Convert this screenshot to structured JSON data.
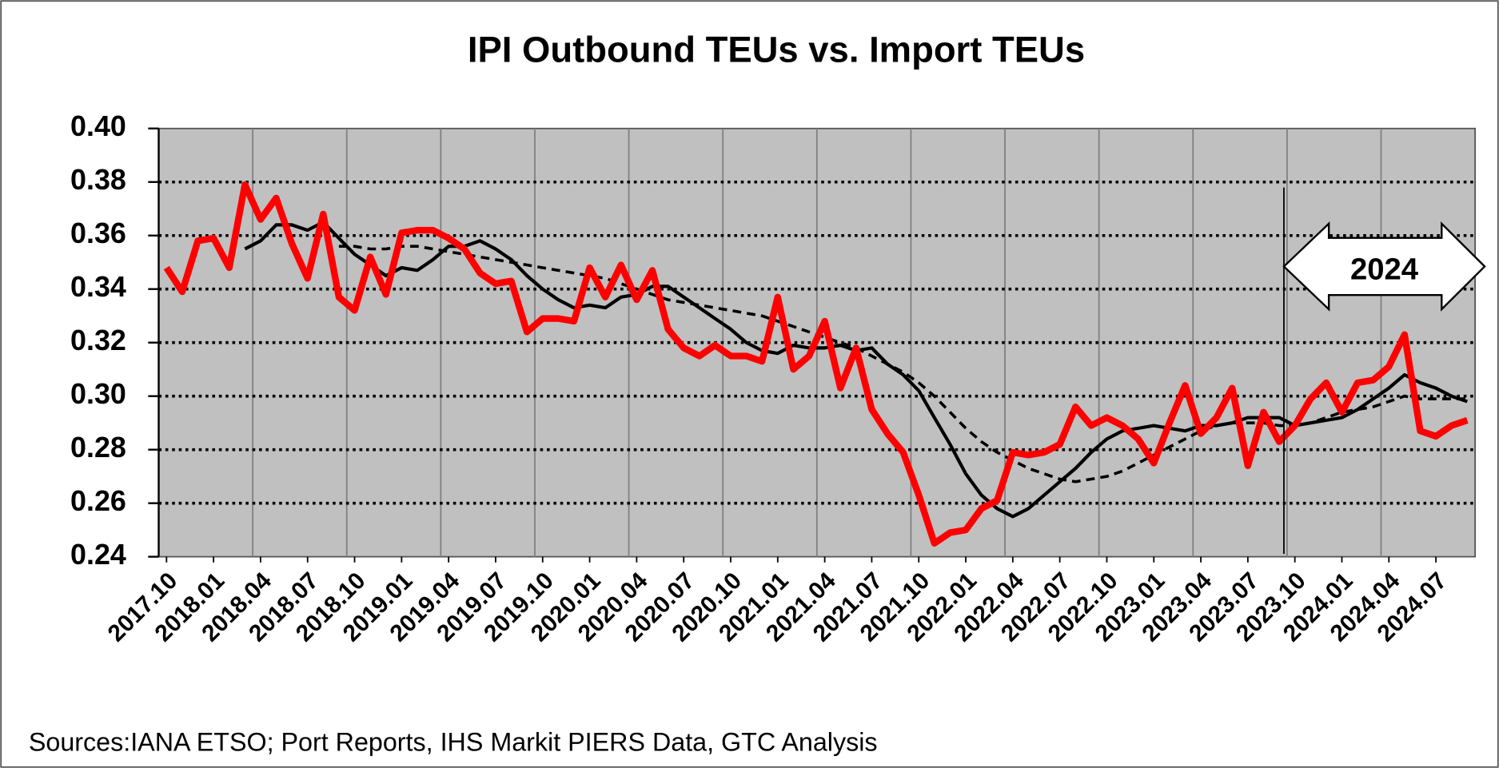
{
  "chart_data": {
    "type": "line",
    "title": "IPI Outbound TEUs vs. Import TEUs",
    "source": "Sources:IANA  ETSO; Port Reports, IHS Markit PIERS  Data, GTC Analysis",
    "annotation": "2024",
    "categories": [
      "2017.10",
      null,
      null,
      "2018.01",
      null,
      null,
      "2018.04",
      null,
      null,
      "2018.07",
      null,
      null,
      "2018.10",
      null,
      null,
      "2019.01",
      null,
      null,
      "2019.04",
      null,
      null,
      "2019.07",
      null,
      null,
      "2019.10",
      null,
      null,
      "2020.01",
      null,
      null,
      "2020.04",
      null,
      null,
      "2020.07",
      null,
      null,
      "2020.10",
      null,
      null,
      "2021.01",
      null,
      null,
      "2021.04",
      null,
      null,
      "2021.07",
      null,
      null,
      "2021.10",
      null,
      null,
      "2022.01",
      null,
      null,
      "2022.04",
      null,
      null,
      "2022.07",
      null,
      null,
      "2022.10",
      null,
      null,
      "2023.01",
      null,
      null,
      "2023.04",
      null,
      null,
      "2023.07",
      null,
      null,
      "2023.10",
      null,
      null,
      "2024.01",
      null,
      null,
      "2024.04",
      null,
      null,
      "2024.07",
      null,
      null
    ],
    "series": [
      {
        "color": "#ff0000",
        "dashed": false,
        "width": 7,
        "values": [
          0.348,
          0.339,
          0.358,
          0.359,
          0.348,
          0.379,
          0.366,
          0.374,
          0.357,
          0.344,
          0.368,
          0.337,
          0.332,
          0.352,
          0.338,
          0.361,
          0.362,
          0.362,
          0.359,
          0.355,
          0.346,
          0.342,
          0.343,
          0.324,
          0.329,
          0.329,
          0.328,
          0.348,
          0.337,
          0.349,
          0.336,
          0.347,
          0.325,
          0.318,
          0.315,
          0.319,
          0.315,
          0.315,
          0.313,
          0.337,
          0.31,
          0.315,
          0.328,
          0.303,
          0.318,
          0.295,
          0.286,
          0.279,
          0.263,
          0.245,
          0.249,
          0.25,
          0.258,
          0.261,
          0.279,
          0.278,
          0.279,
          0.282,
          0.296,
          0.289,
          0.292,
          0.289,
          0.284,
          0.275,
          0.29,
          0.304,
          0.286,
          0.292,
          0.303,
          0.274,
          0.294,
          0.283,
          0.289,
          0.299,
          0.305,
          0.294,
          0.305,
          0.306,
          0.311,
          0.323,
          0.287,
          0.285,
          0.289,
          0.291
        ]
      },
      {
        "color": "#000000",
        "dashed": false,
        "width": 3.5,
        "values": [
          null,
          null,
          null,
          null,
          null,
          0.355,
          0.358,
          0.364,
          0.364,
          0.362,
          0.365,
          0.359,
          0.353,
          0.349,
          0.345,
          0.348,
          0.347,
          0.351,
          0.356,
          0.356,
          0.358,
          0.355,
          0.351,
          0.345,
          0.34,
          0.336,
          0.333,
          0.334,
          0.333,
          0.337,
          0.338,
          0.341,
          0.341,
          0.337,
          0.333,
          0.329,
          0.325,
          0.32,
          0.317,
          0.316,
          0.319,
          0.318,
          0.318,
          0.319,
          0.317,
          0.318,
          0.312,
          0.308,
          0.302,
          0.292,
          0.282,
          0.271,
          0.263,
          0.258,
          0.255,
          0.258,
          0.263,
          0.268,
          0.273,
          0.279,
          0.284,
          0.287,
          0.288,
          0.289,
          0.288,
          0.287,
          0.289,
          0.289,
          0.29,
          0.292,
          0.292,
          0.292,
          0.289,
          0.29,
          0.291,
          0.292,
          0.295,
          0.299,
          0.303,
          0.308,
          0.305,
          0.303,
          0.3,
          0.298
        ]
      },
      {
        "color": "#000000",
        "dashed": true,
        "width": 3,
        "values": [
          null,
          null,
          null,
          null,
          null,
          null,
          null,
          null,
          null,
          null,
          null,
          0.356,
          0.356,
          0.355,
          0.355,
          0.356,
          0.356,
          0.355,
          0.354,
          0.353,
          0.352,
          0.351,
          0.35,
          0.349,
          0.348,
          0.347,
          0.346,
          0.345,
          0.344,
          0.342,
          0.34,
          0.338,
          0.336,
          0.335,
          0.334,
          0.333,
          0.332,
          0.331,
          0.33,
          0.328,
          0.326,
          0.324,
          0.322,
          0.32,
          0.318,
          0.315,
          0.312,
          0.309,
          0.305,
          0.3,
          0.294,
          0.288,
          0.283,
          0.279,
          0.276,
          0.273,
          0.271,
          0.269,
          0.268,
          0.269,
          0.27,
          0.272,
          0.275,
          0.278,
          0.281,
          0.284,
          0.287,
          0.289,
          0.29,
          0.29,
          0.29,
          0.289,
          0.289,
          0.29,
          0.292,
          0.294,
          0.295,
          0.296,
          0.298,
          0.3,
          0.299,
          0.299,
          0.299,
          0.299
        ]
      }
    ],
    "ylim": [
      0.24,
      0.4
    ],
    "yticks": [
      {
        "value": 0.24,
        "label": "0.24"
      },
      0.26,
      0.28,
      {
        "value": 0.3,
        "label": "0.30"
      },
      0.32,
      0.34,
      0.36,
      0.38,
      {
        "value": 0.4,
        "label": "0.40"
      }
    ],
    "grid": true
  }
}
